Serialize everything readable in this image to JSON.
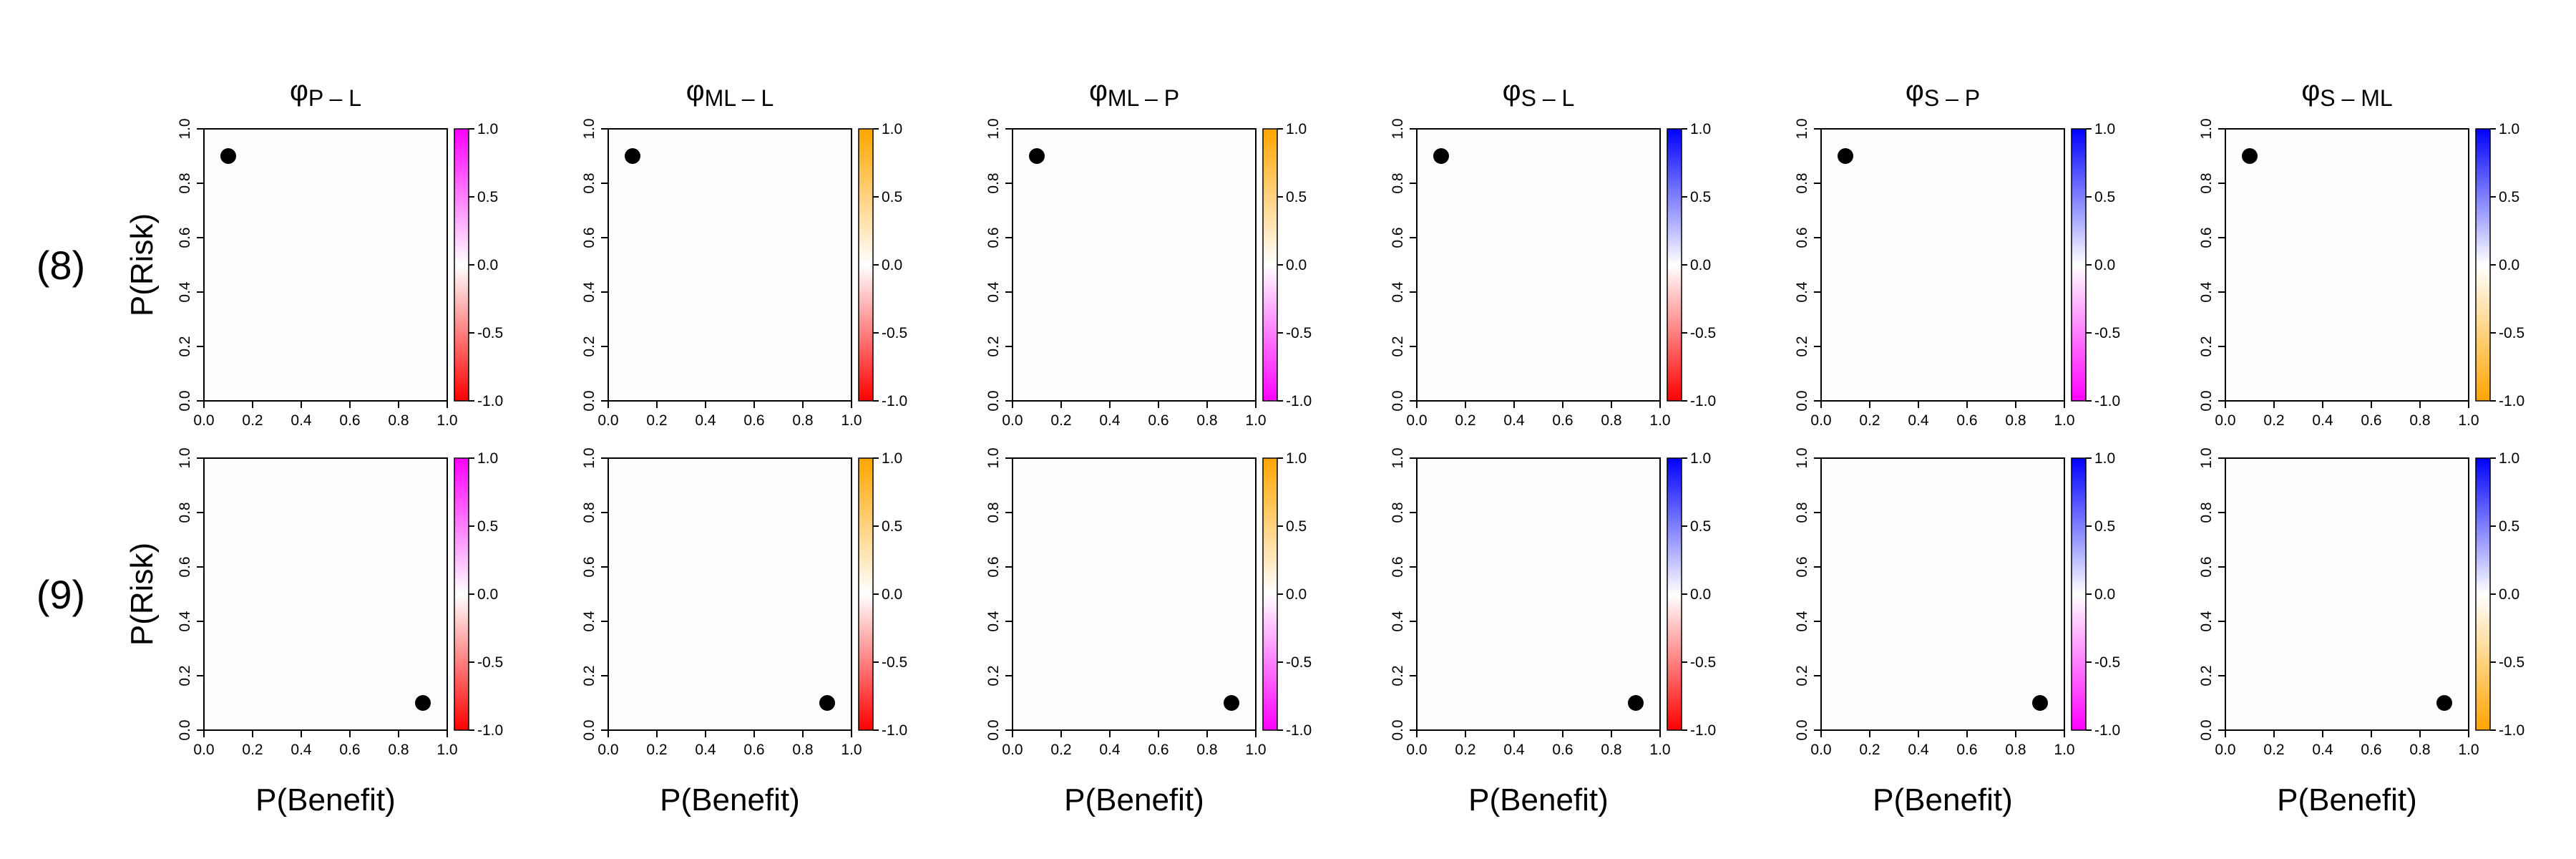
{
  "figure": {
    "row_labels": [
      "(8)",
      "(9)"
    ],
    "x_axis_title": "P(Benefit)",
    "y_axis_title": "P(Risk)"
  },
  "colors": {
    "magenta": "#ff00ff",
    "red": "#ff0000",
    "orange": "#ffa500",
    "blue": "#0000ff",
    "white": "#ffffff",
    "point": "#000000",
    "plot_fill": "#fefcfe"
  },
  "chart_data": [
    {
      "type": "scatter",
      "row": "(8)",
      "title_sym": "φ",
      "title_sub": "P – L",
      "x": [
        0.1
      ],
      "y": [
        0.9
      ],
      "xlim": [
        0,
        1
      ],
      "ylim": [
        0,
        1
      ],
      "xticks": [
        "0.0",
        "0.2",
        "0.4",
        "0.6",
        "0.8",
        "1.0"
      ],
      "yticks": [
        "0.0",
        "0.2",
        "0.4",
        "0.6",
        "0.8",
        "1.0"
      ],
      "colorbar": {
        "min": -1.0,
        "max": 1.0,
        "ticks": [
          "-1.0",
          "-0.5",
          "0.0",
          "0.5",
          "1.0"
        ],
        "low": "red",
        "high": "magenta"
      }
    },
    {
      "type": "scatter",
      "row": "(8)",
      "title_sym": "φ",
      "title_sub": "ML – L",
      "x": [
        0.1
      ],
      "y": [
        0.9
      ],
      "xlim": [
        0,
        1
      ],
      "ylim": [
        0,
        1
      ],
      "xticks": [
        "0.0",
        "0.2",
        "0.4",
        "0.6",
        "0.8",
        "1.0"
      ],
      "yticks": [
        "0.0",
        "0.2",
        "0.4",
        "0.6",
        "0.8",
        "1.0"
      ],
      "colorbar": {
        "min": -1.0,
        "max": 1.0,
        "ticks": [
          "-1.0",
          "-0.5",
          "0.0",
          "0.5",
          "1.0"
        ],
        "low": "red",
        "high": "orange"
      }
    },
    {
      "type": "scatter",
      "row": "(8)",
      "title_sym": "φ",
      "title_sub": "ML – P",
      "x": [
        0.1
      ],
      "y": [
        0.9
      ],
      "xlim": [
        0,
        1
      ],
      "ylim": [
        0,
        1
      ],
      "xticks": [
        "0.0",
        "0.2",
        "0.4",
        "0.6",
        "0.8",
        "1.0"
      ],
      "yticks": [
        "0.0",
        "0.2",
        "0.4",
        "0.6",
        "0.8",
        "1.0"
      ],
      "colorbar": {
        "min": -1.0,
        "max": 1.0,
        "ticks": [
          "-1.0",
          "-0.5",
          "0.0",
          "0.5",
          "1.0"
        ],
        "low": "magenta",
        "high": "orange"
      }
    },
    {
      "type": "scatter",
      "row": "(8)",
      "title_sym": "φ",
      "title_sub": "S – L",
      "x": [
        0.1
      ],
      "y": [
        0.9
      ],
      "xlim": [
        0,
        1
      ],
      "ylim": [
        0,
        1
      ],
      "xticks": [
        "0.0",
        "0.2",
        "0.4",
        "0.6",
        "0.8",
        "1.0"
      ],
      "yticks": [
        "0.0",
        "0.2",
        "0.4",
        "0.6",
        "0.8",
        "1.0"
      ],
      "colorbar": {
        "min": -1.0,
        "max": 1.0,
        "ticks": [
          "-1.0",
          "-0.5",
          "0.0",
          "0.5",
          "1.0"
        ],
        "low": "red",
        "high": "blue"
      }
    },
    {
      "type": "scatter",
      "row": "(8)",
      "title_sym": "φ",
      "title_sub": "S – P",
      "x": [
        0.1
      ],
      "y": [
        0.9
      ],
      "xlim": [
        0,
        1
      ],
      "ylim": [
        0,
        1
      ],
      "xticks": [
        "0.0",
        "0.2",
        "0.4",
        "0.6",
        "0.8",
        "1.0"
      ],
      "yticks": [
        "0.0",
        "0.2",
        "0.4",
        "0.6",
        "0.8",
        "1.0"
      ],
      "colorbar": {
        "min": -1.0,
        "max": 1.0,
        "ticks": [
          "-1.0",
          "-0.5",
          "0.0",
          "0.5",
          "1.0"
        ],
        "low": "magenta",
        "high": "blue"
      }
    },
    {
      "type": "scatter",
      "row": "(8)",
      "title_sym": "φ",
      "title_sub": "S – ML",
      "x": [
        0.1
      ],
      "y": [
        0.9
      ],
      "xlim": [
        0,
        1
      ],
      "ylim": [
        0,
        1
      ],
      "xticks": [
        "0.0",
        "0.2",
        "0.4",
        "0.6",
        "0.8",
        "1.0"
      ],
      "yticks": [
        "0.0",
        "0.2",
        "0.4",
        "0.6",
        "0.8",
        "1.0"
      ],
      "colorbar": {
        "min": -1.0,
        "max": 1.0,
        "ticks": [
          "-1.0",
          "-0.5",
          "0.0",
          "0.5",
          "1.0"
        ],
        "low": "orange",
        "high": "blue"
      }
    },
    {
      "type": "scatter",
      "row": "(9)",
      "x": [
        0.9
      ],
      "y": [
        0.1
      ],
      "xlim": [
        0,
        1
      ],
      "ylim": [
        0,
        1
      ],
      "xticks": [
        "0.0",
        "0.2",
        "0.4",
        "0.6",
        "0.8",
        "1.0"
      ],
      "yticks": [
        "0.0",
        "0.2",
        "0.4",
        "0.6",
        "0.8",
        "1.0"
      ],
      "colorbar": {
        "min": -1.0,
        "max": 1.0,
        "ticks": [
          "-1.0",
          "-0.5",
          "0.0",
          "0.5",
          "1.0"
        ],
        "low": "red",
        "high": "magenta"
      }
    },
    {
      "type": "scatter",
      "row": "(9)",
      "x": [
        0.9
      ],
      "y": [
        0.1
      ],
      "xlim": [
        0,
        1
      ],
      "ylim": [
        0,
        1
      ],
      "xticks": [
        "0.0",
        "0.2",
        "0.4",
        "0.6",
        "0.8",
        "1.0"
      ],
      "yticks": [
        "0.0",
        "0.2",
        "0.4",
        "0.6",
        "0.8",
        "1.0"
      ],
      "colorbar": {
        "min": -1.0,
        "max": 1.0,
        "ticks": [
          "-1.0",
          "-0.5",
          "0.0",
          "0.5",
          "1.0"
        ],
        "low": "red",
        "high": "orange"
      }
    },
    {
      "type": "scatter",
      "row": "(9)",
      "x": [
        0.9
      ],
      "y": [
        0.1
      ],
      "xlim": [
        0,
        1
      ],
      "ylim": [
        0,
        1
      ],
      "xticks": [
        "0.0",
        "0.2",
        "0.4",
        "0.6",
        "0.8",
        "1.0"
      ],
      "yticks": [
        "0.0",
        "0.2",
        "0.4",
        "0.6",
        "0.8",
        "1.0"
      ],
      "colorbar": {
        "min": -1.0,
        "max": 1.0,
        "ticks": [
          "-1.0",
          "-0.5",
          "0.0",
          "0.5",
          "1.0"
        ],
        "low": "magenta",
        "high": "orange"
      }
    },
    {
      "type": "scatter",
      "row": "(9)",
      "x": [
        0.9
      ],
      "y": [
        0.1
      ],
      "xlim": [
        0,
        1
      ],
      "ylim": [
        0,
        1
      ],
      "xticks": [
        "0.0",
        "0.2",
        "0.4",
        "0.6",
        "0.8",
        "1.0"
      ],
      "yticks": [
        "0.0",
        "0.2",
        "0.4",
        "0.6",
        "0.8",
        "1.0"
      ],
      "colorbar": {
        "min": -1.0,
        "max": 1.0,
        "ticks": [
          "-1.0",
          "-0.5",
          "0.0",
          "0.5",
          "1.0"
        ],
        "low": "red",
        "high": "blue"
      }
    },
    {
      "type": "scatter",
      "row": "(9)",
      "x": [
        0.9
      ],
      "y": [
        0.1
      ],
      "xlim": [
        0,
        1
      ],
      "ylim": [
        0,
        1
      ],
      "xticks": [
        "0.0",
        "0.2",
        "0.4",
        "0.6",
        "0.8",
        "1.0"
      ],
      "yticks": [
        "0.0",
        "0.2",
        "0.4",
        "0.6",
        "0.8",
        "1.0"
      ],
      "colorbar": {
        "min": -1.0,
        "max": 1.0,
        "ticks": [
          "-1.0",
          "-0.5",
          "0.0",
          "0.5",
          "1.0"
        ],
        "low": "magenta",
        "high": "blue"
      }
    },
    {
      "type": "scatter",
      "row": "(9)",
      "x": [
        0.9
      ],
      "y": [
        0.1
      ],
      "xlim": [
        0,
        1
      ],
      "ylim": [
        0,
        1
      ],
      "xticks": [
        "0.0",
        "0.2",
        "0.4",
        "0.6",
        "0.8",
        "1.0"
      ],
      "yticks": [
        "0.0",
        "0.2",
        "0.4",
        "0.6",
        "0.8",
        "1.0"
      ],
      "colorbar": {
        "min": -1.0,
        "max": 1.0,
        "ticks": [
          "-1.0",
          "-0.5",
          "0.0",
          "0.5",
          "1.0"
        ],
        "low": "orange",
        "high": "blue"
      }
    }
  ]
}
